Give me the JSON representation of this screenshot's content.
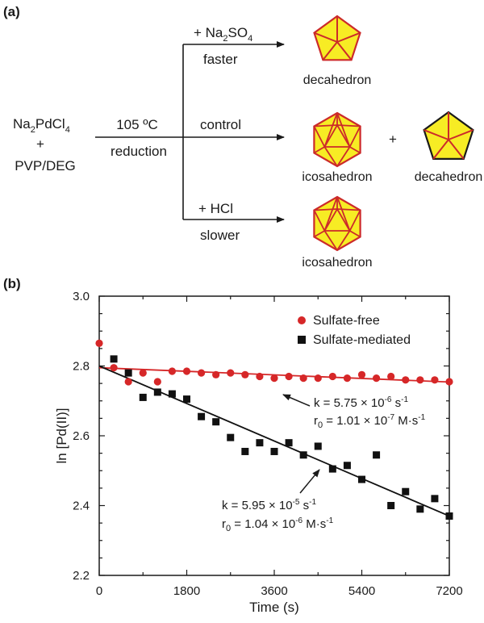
{
  "panel_a": {
    "label": "(a)",
    "reactant": {
      "line1_a": "Na",
      "line1_b": "2",
      "line1_c": "PdCl",
      "line1_d": "4",
      "line2": "+",
      "line3": "PVP/DEG"
    },
    "condition_top": "105 ºC",
    "condition_bottom": "reduction",
    "branches": [
      {
        "top_a": "+ Na",
        "top_b": "2",
        "top_c": "SO",
        "top_d": "4",
        "bottom": "faster",
        "products": [
          "decahedron"
        ]
      },
      {
        "top": "control",
        "bottom": "",
        "products": [
          "icosahedron",
          "decahedron"
        ],
        "joiner": "+"
      },
      {
        "top": "+  HCl",
        "bottom": "slower",
        "products": [
          "icosahedron"
        ]
      }
    ],
    "colors": {
      "fill": "#f7ec24",
      "edge": "#cc2a2a"
    }
  },
  "chart_data": {
    "panel_label": "(b)",
    "type": "scatter",
    "xlabel": "Time (s)",
    "ylabel": "ln [Pd(II)]",
    "xlim": [
      0,
      7200
    ],
    "ylim": [
      2.2,
      3.0
    ],
    "xticks": [
      "0",
      "1800",
      "3600",
      "5400",
      "7200"
    ],
    "yticks": [
      "2.2",
      "2.4",
      "2.6",
      "2.8",
      "3.0"
    ],
    "legend_position": "top-right",
    "series": [
      {
        "name": "Sulfate-free",
        "marker": "circle",
        "color": "#d62728",
        "x": [
          0,
          300,
          600,
          900,
          1200,
          1500,
          1800,
          2100,
          2400,
          2700,
          3000,
          3300,
          3600,
          3900,
          4200,
          4500,
          4800,
          5100,
          5400,
          5700,
          6000,
          6300,
          6600,
          6900,
          7200
        ],
        "y": [
          2.865,
          2.795,
          2.755,
          2.78,
          2.755,
          2.785,
          2.785,
          2.78,
          2.775,
          2.78,
          2.775,
          2.77,
          2.765,
          2.77,
          2.765,
          2.765,
          2.77,
          2.765,
          2.775,
          2.765,
          2.77,
          2.76,
          2.76,
          2.76,
          2.755
        ],
        "fit": {
          "x": [
            0,
            7200
          ],
          "y": [
            2.795,
            2.754
          ]
        }
      },
      {
        "name": "Sulfate-mediated",
        "marker": "square",
        "color": "#111111",
        "x": [
          300,
          600,
          900,
          1200,
          1500,
          1800,
          2100,
          2400,
          2700,
          3000,
          3300,
          3600,
          3900,
          4200,
          4500,
          4800,
          5100,
          5400,
          5700,
          6000,
          6300,
          6600,
          6900,
          7200
        ],
        "y": [
          2.82,
          2.78,
          2.71,
          2.725,
          2.72,
          2.705,
          2.655,
          2.64,
          2.595,
          2.555,
          2.58,
          2.555,
          2.58,
          2.545,
          2.57,
          2.505,
          2.515,
          2.475,
          2.545,
          2.4,
          2.44,
          2.39,
          2.42,
          2.37
        ],
        "fit": {
          "x": [
            0,
            7200
          ],
          "y": [
            2.8,
            2.37
          ]
        }
      }
    ],
    "annotations": [
      {
        "k_pre": "k = 5.75 × 10",
        "k_exp": "-6",
        "k_unit": "  s",
        "k_unit_exp": "-1",
        "r_a": "r",
        "r_sub": "0",
        "r_pre": " = 1.01 × 10",
        "r_exp": "-7",
        "r_unit": "  M·s",
        "r_unit_exp": "-1"
      },
      {
        "k_pre": "k = 5.95 × 10",
        "k_exp": "-5",
        "k_unit": "  s",
        "k_unit_exp": "-1",
        "r_a": "r",
        "r_sub": "0",
        "r_pre": " = 1.04 × 10",
        "r_exp": "-6",
        "r_unit": "  M·s",
        "r_unit_exp": "-1"
      }
    ]
  }
}
